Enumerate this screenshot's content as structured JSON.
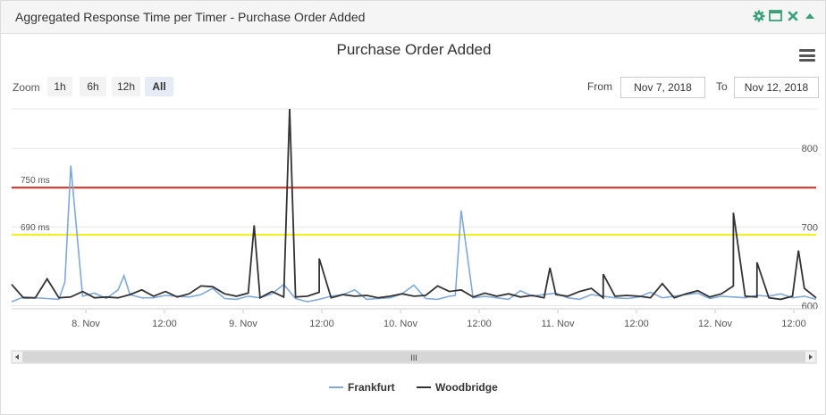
{
  "panel": {
    "title": "Aggregated Response Time per Timer - Purchase Order Added",
    "icons": [
      "gear-icon",
      "maximize-icon",
      "close-icon",
      "collapse-icon"
    ],
    "icon_color": "#3aa07a"
  },
  "chart_title": "Purchase Order Added",
  "zoom": {
    "label": "Zoom",
    "buttons": [
      "1h",
      "6h",
      "12h",
      "All"
    ],
    "active": "All"
  },
  "range": {
    "from_label": "From",
    "from_value": "Nov 7, 2018",
    "to_label": "To",
    "to_value": "Nov 12, 2018"
  },
  "scrollbar": {
    "grip": "III"
  },
  "chart_data": {
    "type": "line",
    "title": "Purchase Order Added",
    "xlabel": "",
    "ylabel": "",
    "y_ticks": [
      600,
      700,
      800
    ],
    "ylim": [
      596,
      850
    ],
    "x_ticks": [
      "8. Nov",
      "12:00",
      "9. Nov",
      "12:00",
      "10. Nov",
      "12:00",
      "11. Nov",
      "12:00",
      "12. Nov",
      "12:00"
    ],
    "x_range": [
      2,
      138
    ],
    "thresholds": [
      {
        "label": "750 ms",
        "value": 750,
        "color": "#d42a1e"
      },
      {
        "label": "690 ms",
        "value": 690,
        "color": "#f2ee1a"
      }
    ],
    "series": [
      {
        "name": "Frankfurt",
        "color": "#7fa8dc",
        "x": [
          2,
          4,
          6,
          8,
          10,
          11,
          12,
          14,
          16,
          18,
          20,
          21,
          22,
          24,
          26,
          28,
          30,
          32,
          34,
          36,
          38,
          40,
          42,
          44,
          46,
          48,
          50,
          52,
          54,
          56,
          58,
          60,
          62,
          64,
          66,
          68,
          70,
          72,
          74,
          76,
          77,
          78,
          80,
          82,
          84,
          86,
          88,
          90,
          92,
          94,
          96,
          98,
          100,
          102,
          104,
          106,
          108,
          110,
          112,
          114,
          116,
          118,
          120,
          122,
          124,
          126,
          128,
          130,
          132,
          134,
          136,
          138
        ],
        "values": [
          605,
          611,
          610,
          609,
          608,
          630,
          778,
          612,
          616,
          609,
          620,
          638,
          614,
          610,
          610,
          613,
          612,
          611,
          614,
          622,
          609,
          608,
          612,
          610,
          615,
          627,
          609,
          605,
          608,
          612,
          614,
          620,
          608,
          609,
          610,
          615,
          626,
          609,
          608,
          612,
          613,
          721,
          610,
          612,
          610,
          608,
          619,
          612,
          614,
          616,
          610,
          608,
          614,
          612,
          610,
          609,
          611,
          617,
          610,
          612,
          614,
          616,
          609,
          612,
          611,
          610,
          613,
          612,
          615,
          610,
          612,
          608
        ]
      },
      {
        "name": "Woodbridge",
        "color": "#333333",
        "x": [
          2,
          4,
          6,
          8,
          10,
          12,
          14,
          16,
          18,
          20,
          22,
          24,
          26,
          28,
          30,
          32,
          34,
          36,
          38,
          40,
          42,
          44,
          46,
          48,
          50,
          52,
          54,
          56,
          58,
          60,
          62,
          64,
          66,
          68,
          70,
          72,
          74,
          76,
          78,
          80,
          82,
          84,
          86,
          88,
          90,
          92,
          94,
          96,
          98,
          100,
          102,
          104,
          106,
          108,
          110,
          112,
          114,
          116,
          118,
          120,
          122,
          124,
          126,
          128,
          130,
          132,
          134,
          136,
          138
        ],
        "values": [
          627,
          610,
          610,
          634,
          610,
          611,
          618,
          610,
          611,
          610,
          614,
          620,
          612,
          618,
          611,
          615,
          625,
          624,
          615,
          612,
          616,
          610,
          618,
          611,
          611,
          612,
          617,
          610,
          614,
          612,
          613,
          610,
          612,
          615,
          612,
          613,
          625,
          618,
          620,
          611,
          616,
          612,
          615,
          611,
          613,
          610,
          614,
          612,
          618,
          622,
          610,
          612,
          613,
          612,
          610,
          628,
          610,
          615,
          619,
          611,
          615,
          625,
          612,
          611,
          610,
          608,
          612,
          622,
          610
        ]
      }
    ],
    "woodbridge_spikes": [
      {
        "x": 43,
        "value": 702
      },
      {
        "x": 49,
        "value": 850
      },
      {
        "x": 54,
        "value": 660
      },
      {
        "x": 93,
        "value": 648
      },
      {
        "x": 102,
        "value": 640
      },
      {
        "x": 124,
        "value": 718
      },
      {
        "x": 128,
        "value": 655
      },
      {
        "x": 135,
        "value": 670
      }
    ],
    "legend": [
      "Frankfurt",
      "Woodbridge"
    ],
    "legend_position": "bottom-center"
  }
}
